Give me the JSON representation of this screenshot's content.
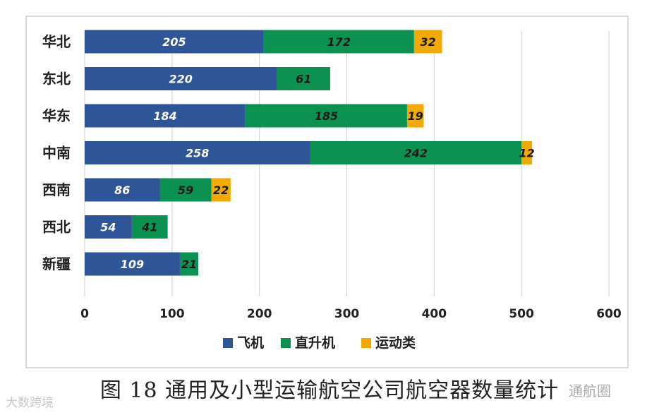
{
  "chart_data": {
    "type": "bar",
    "orientation": "horizontal",
    "stacked": true,
    "categories": [
      "华北",
      "东北",
      "华东",
      "中南",
      "西南",
      "西北",
      "新疆"
    ],
    "series": [
      {
        "name": "飞机",
        "values": [
          205,
          220,
          184,
          258,
          86,
          54,
          109
        ],
        "color": "#2e5597"
      },
      {
        "name": "直升机",
        "values": [
          172,
          61,
          185,
          242,
          59,
          41,
          21
        ],
        "color": "#0b9150"
      },
      {
        "name": "运动类",
        "values": [
          32,
          null,
          19,
          12,
          22,
          null,
          null
        ],
        "color": "#f2a900"
      }
    ],
    "xlim": [
      0,
      600
    ],
    "xticks": [
      0,
      100,
      200,
      300,
      400,
      500,
      600
    ],
    "grid": true,
    "legend_position": "bottom",
    "title": "图 18 通用及小型运输航空公司航空器数量统计"
  },
  "watermarks": {
    "left": "大数跨境",
    "right": "通航圈"
  }
}
